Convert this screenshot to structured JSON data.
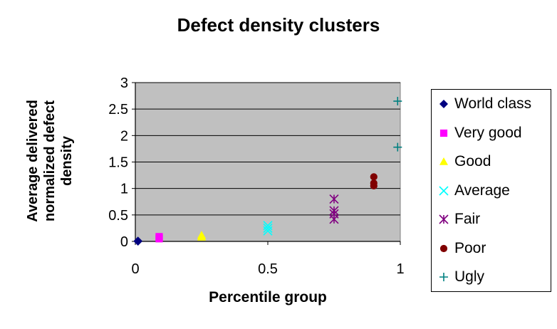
{
  "chart_data": {
    "type": "scatter",
    "title": "Defect density clusters",
    "xlabel": "Percentile group",
    "ylabel": [
      "Average delivered",
      "normalized defect",
      "density"
    ],
    "xlim": [
      0,
      1
    ],
    "ylim": [
      0,
      3
    ],
    "xticks": [
      "0",
      "0.5",
      "1"
    ],
    "yticks": [
      "0",
      "0.5",
      "1",
      "1.5",
      "2",
      "2.5",
      "3"
    ],
    "grid": "horizontal",
    "plot_background": "#C0C0C0",
    "legend_position": "right",
    "series": [
      {
        "name": "World class",
        "marker": "diamond",
        "color": "#000080",
        "points": [
          [
            0.01,
            0.0
          ],
          [
            0.01,
            0.01
          ]
        ]
      },
      {
        "name": "Very good",
        "marker": "square",
        "color": "#FF00FF",
        "points": [
          [
            0.09,
            0.05
          ],
          [
            0.09,
            0.07
          ],
          [
            0.09,
            0.09
          ]
        ]
      },
      {
        "name": "Good",
        "marker": "triangle",
        "color": "#FFFF00",
        "points": [
          [
            0.25,
            0.08
          ],
          [
            0.25,
            0.1
          ],
          [
            0.25,
            0.12
          ]
        ]
      },
      {
        "name": "Average",
        "marker": "x",
        "color": "#00FFFF",
        "points": [
          [
            0.5,
            0.2
          ],
          [
            0.5,
            0.25
          ],
          [
            0.5,
            0.3
          ]
        ]
      },
      {
        "name": "Fair",
        "marker": "asterisk",
        "color": "#800080",
        "points": [
          [
            0.75,
            0.42
          ],
          [
            0.75,
            0.52
          ],
          [
            0.75,
            0.58
          ],
          [
            0.75,
            0.8
          ]
        ]
      },
      {
        "name": "Poor",
        "marker": "circle",
        "color": "#800000",
        "points": [
          [
            0.9,
            1.05
          ],
          [
            0.9,
            1.1
          ],
          [
            0.9,
            1.22
          ]
        ]
      },
      {
        "name": "Ugly",
        "marker": "plus",
        "color": "#008080",
        "points": [
          [
            0.99,
            1.78
          ],
          [
            0.99,
            2.65
          ]
        ]
      }
    ]
  }
}
